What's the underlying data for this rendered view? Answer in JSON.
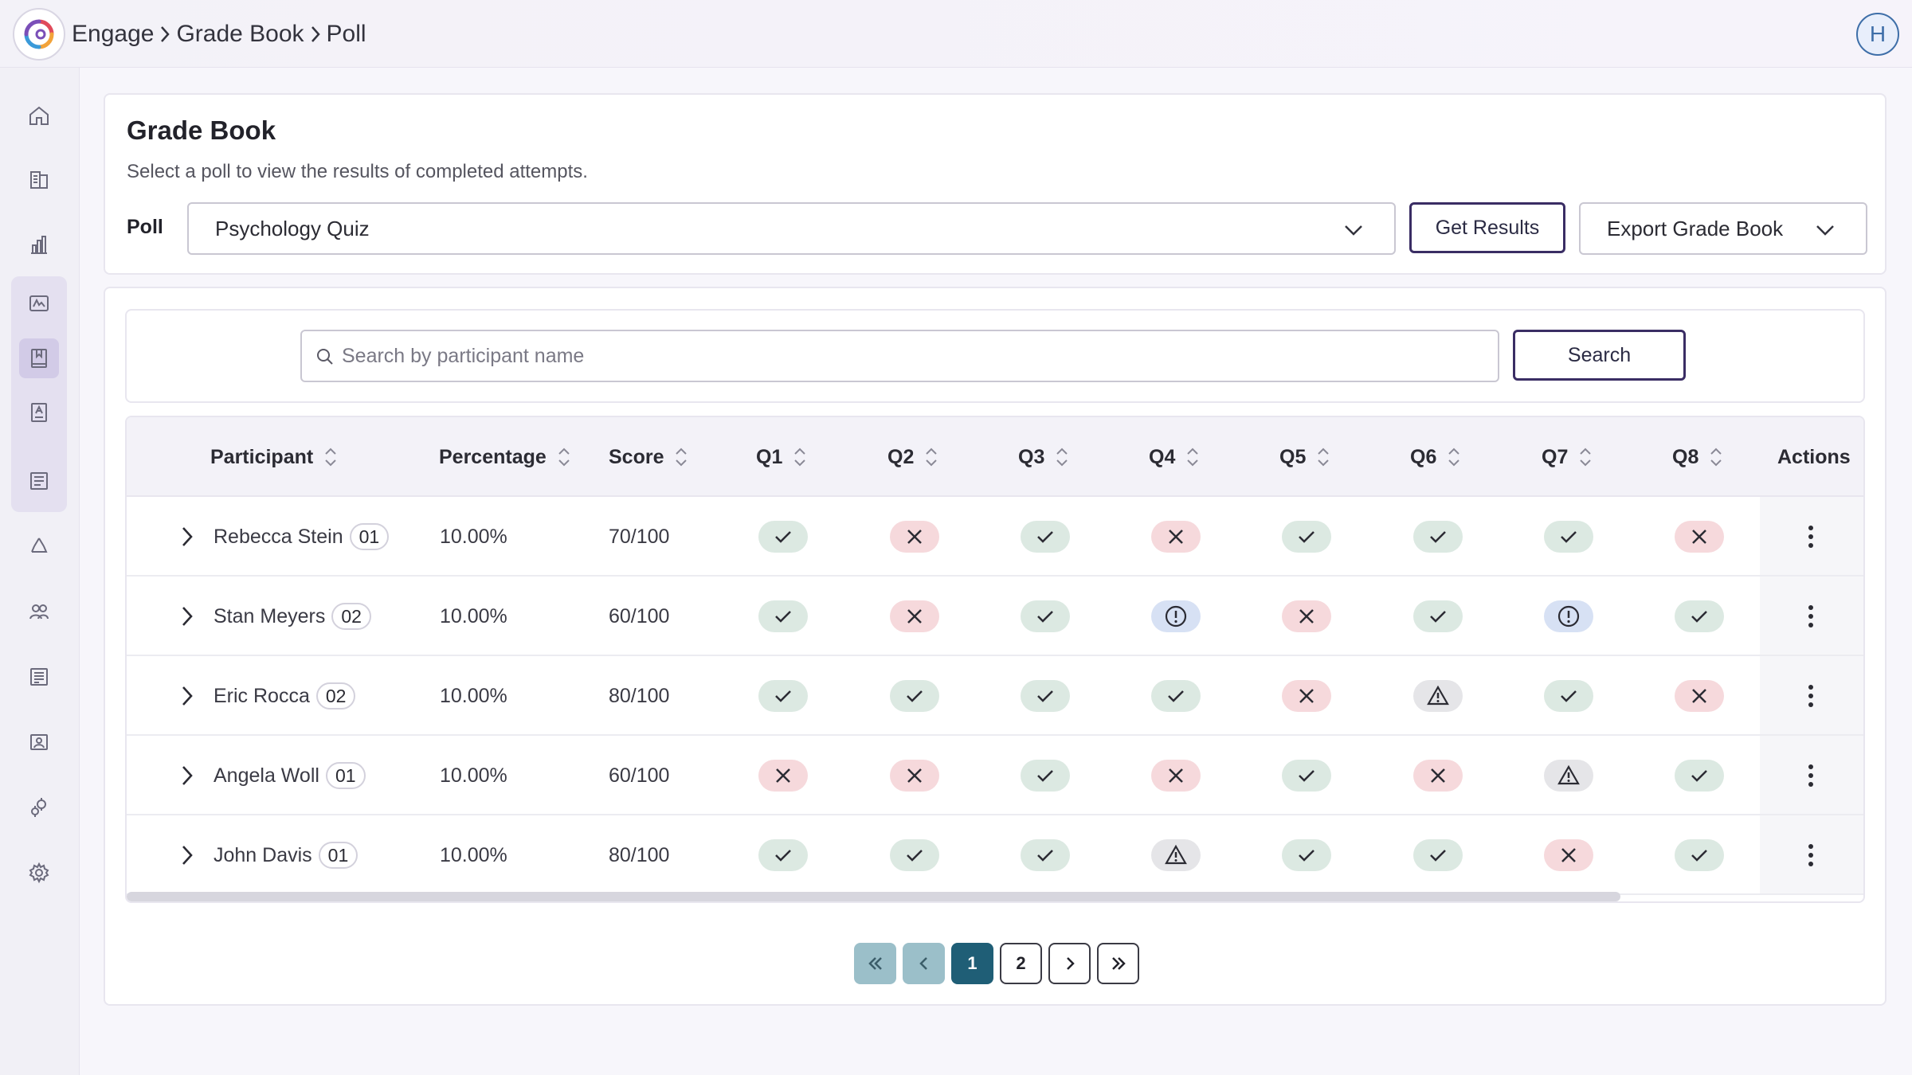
{
  "breadcrumb": [
    "Engage",
    "Grade Book",
    "Poll"
  ],
  "user": {
    "initial": "H"
  },
  "sidebar": {
    "items": [
      "home-icon",
      "library-icon",
      "chart-icon",
      "slides-icon",
      "gradebook-icon",
      "report-icon",
      "survey-icon",
      "recycle-icon",
      "people-icon",
      "list-icon",
      "gallery-icon",
      "integrations-icon",
      "settings-icon"
    ],
    "active": "gradebook-icon"
  },
  "gradebook": {
    "title": "Grade Book",
    "subtitle": "Select a poll to view the results of completed attempts.",
    "poll_label": "Poll",
    "poll_value": "Psychology Quiz",
    "get_results": "Get Results",
    "export": "Export Grade Book"
  },
  "search": {
    "placeholder": "Search by participant name",
    "button": "Search"
  },
  "table": {
    "columns": [
      "Participant",
      "Percentage",
      "Score",
      "Q1",
      "Q2",
      "Q3",
      "Q4",
      "Q5",
      "Q6",
      "Q7",
      "Q8",
      "Actions"
    ],
    "rows": [
      {
        "name": "Rebecca Stein",
        "badge": "01",
        "percentage": "10.00%",
        "score": "70/100",
        "answers": [
          "ok",
          "no",
          "ok",
          "no",
          "ok",
          "ok",
          "ok",
          "no"
        ]
      },
      {
        "name": "Stan Meyers",
        "badge": "02",
        "percentage": "10.00%",
        "score": "60/100",
        "answers": [
          "ok",
          "no",
          "ok",
          "info",
          "no",
          "ok",
          "info",
          "ok"
        ]
      },
      {
        "name": "Eric Rocca",
        "badge": "02",
        "percentage": "10.00%",
        "score": "80/100",
        "answers": [
          "ok",
          "ok",
          "ok",
          "ok",
          "no",
          "warn",
          "ok",
          "no"
        ]
      },
      {
        "name": "Angela Woll",
        "badge": "01",
        "percentage": "10.00%",
        "score": "60/100",
        "answers": [
          "no",
          "no",
          "ok",
          "no",
          "ok",
          "no",
          "warn",
          "ok"
        ]
      },
      {
        "name": "John Davis",
        "badge": "01",
        "percentage": "10.00%",
        "score": "80/100",
        "answers": [
          "ok",
          "ok",
          "ok",
          "warn",
          "ok",
          "ok",
          "no",
          "ok"
        ]
      }
    ]
  },
  "pagination": {
    "pages": [
      "1",
      "2"
    ],
    "current": "1"
  },
  "colors": {
    "correct_bg": "#dce9e2",
    "incorrect_bg": "#f6d9dc",
    "info_bg": "#d7e1f4",
    "warn_bg": "#e5e5e8",
    "accent": "#3a2d64",
    "page_active": "#1f5e76"
  }
}
